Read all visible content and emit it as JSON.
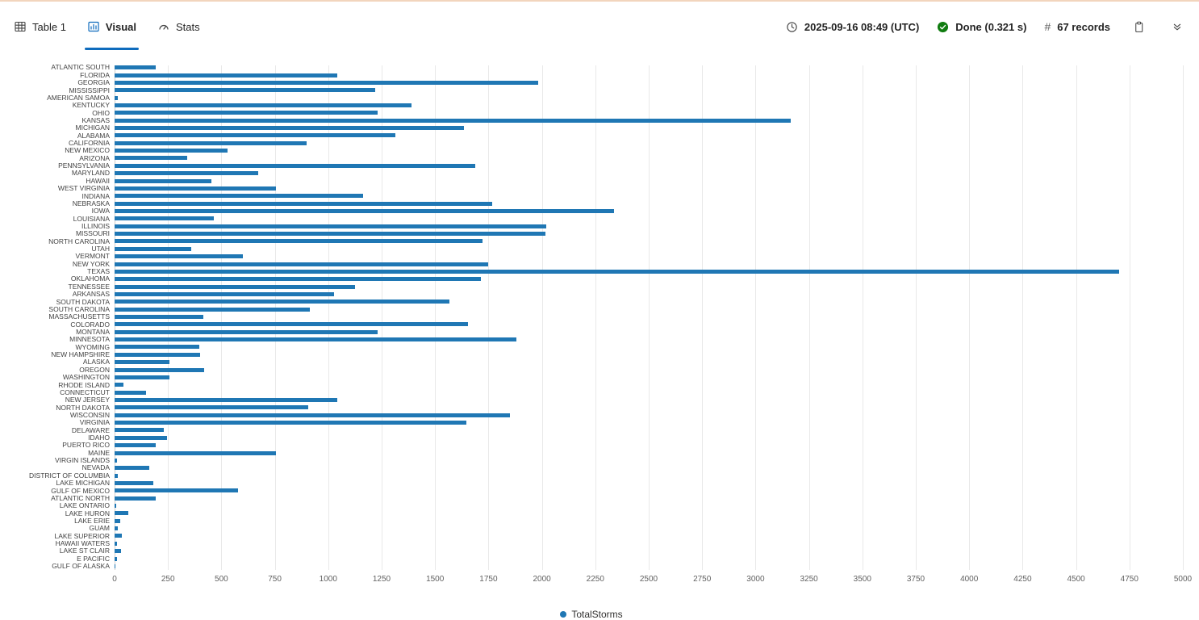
{
  "toolbar": {
    "tabs": [
      {
        "label": "Table 1",
        "icon": "table-grid-icon",
        "active": false
      },
      {
        "label": "Visual",
        "icon": "bar-chart-icon",
        "active": true
      },
      {
        "label": "Stats",
        "icon": "gauge-icon",
        "active": false
      }
    ],
    "status": {
      "timestamp": "2025-09-16 08:49 (UTC)",
      "done": "Done (0.321 s)",
      "hash": "#",
      "records": "67 records"
    },
    "actions": [
      {
        "icon": "copy-icon"
      },
      {
        "icon": "double-chevron-down-icon"
      }
    ]
  },
  "colors": {
    "accent": "#0f6cbd",
    "bar": "#1f77b4",
    "success": "#107c10",
    "gridline": "#e9e9e9",
    "axis_text": "#616161",
    "label_text": "#424242",
    "top_divider": "#f2d5bd"
  },
  "chart_data": {
    "type": "bar",
    "orientation": "horizontal",
    "title": "",
    "xlabel": "",
    "ylabel": "",
    "grid": true,
    "xlim": [
      0,
      5000
    ],
    "x_ticks": [
      0,
      250,
      500,
      750,
      1000,
      1250,
      1500,
      1750,
      2000,
      2250,
      2500,
      2750,
      3000,
      3250,
      3500,
      3750,
      4000,
      4250,
      4500,
      4750,
      5000
    ],
    "legend": {
      "label": "TotalStorms",
      "position": "bottom"
    },
    "categories": [
      "ATLANTIC SOUTH",
      "FLORIDA",
      "GEORGIA",
      "MISSISSIPPI",
      "AMERICAN SAMOA",
      "KENTUCKY",
      "OHIO",
      "KANSAS",
      "MICHIGAN",
      "ALABAMA",
      "CALIFORNIA",
      "NEW MEXICO",
      "ARIZONA",
      "PENNSYLVANIA",
      "MARYLAND",
      "HAWAII",
      "WEST VIRGINIA",
      "INDIANA",
      "NEBRASKA",
      "IOWA",
      "LOUISIANA",
      "ILLINOIS",
      "MISSOURI",
      "NORTH CAROLINA",
      "UTAH",
      "VERMONT",
      "NEW YORK",
      "TEXAS",
      "OKLAHOMA",
      "TENNESSEE",
      "ARKANSAS",
      "SOUTH DAKOTA",
      "SOUTH CAROLINA",
      "MASSACHUSETTS",
      "COLORADO",
      "MONTANA",
      "MINNESOTA",
      "WYOMING",
      "NEW HAMPSHIRE",
      "ALASKA",
      "OREGON",
      "WASHINGTON",
      "RHODE ISLAND",
      "CONNECTICUT",
      "NEW JERSEY",
      "NORTH DAKOTA",
      "WISCONSIN",
      "VIRGINIA",
      "DELAWARE",
      "IDAHO",
      "PUERTO RICO",
      "MAINE",
      "VIRGIN ISLANDS",
      "NEVADA",
      "DISTRICT OF COLUMBIA",
      "LAKE MICHIGAN",
      "GULF OF MEXICO",
      "ATLANTIC NORTH",
      "LAKE ONTARIO",
      "LAKE HURON",
      "LAKE ERIE",
      "GUAM",
      "LAKE SUPERIOR",
      "HAWAII WATERS",
      "LAKE ST CLAIR",
      "E PACIFIC",
      "GULF OF ALASKA"
    ],
    "series": [
      {
        "name": "TotalStorms",
        "values": [
          193,
          1042,
          1983,
          1218,
          16,
          1391,
          1233,
          3166,
          1637,
          1315,
          898,
          527,
          340,
          1687,
          671,
          454,
          757,
          1164,
          1766,
          2337,
          463,
          2022,
          2016,
          1721,
          358,
          600,
          1750,
          4701,
          1716,
          1125,
          1028,
          1567,
          915,
          416,
          1654,
          1230,
          1881,
          396,
          399,
          257,
          420,
          258,
          41,
          148,
          1044,
          905,
          1850,
          1647,
          229,
          247,
          192,
          757,
          12,
          161,
          16,
          182,
          577,
          193,
          8,
          63,
          27,
          14,
          34,
          10,
          32,
          10,
          4
        ]
      }
    ]
  }
}
